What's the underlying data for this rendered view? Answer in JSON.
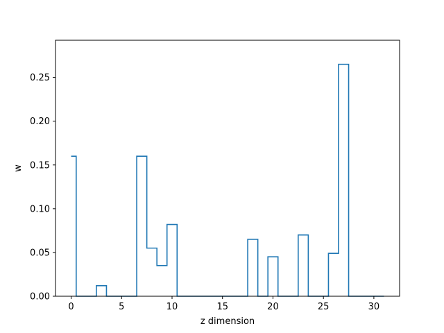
{
  "chart_data": {
    "type": "line",
    "drawstyle": "steps-mid",
    "title": "",
    "xlabel": "z dimension",
    "ylabel": "w",
    "xlim": [
      -1.55,
      32.55
    ],
    "ylim": [
      0.0,
      0.2925
    ],
    "xticks": [
      0,
      5,
      10,
      15,
      20,
      25,
      30
    ],
    "xtick_labels": [
      "0",
      "5",
      "10",
      "15",
      "20",
      "25",
      "30"
    ],
    "yticks": [
      0.0,
      0.05,
      0.1,
      0.15,
      0.2,
      0.25
    ],
    "ytick_labels": [
      "0.00",
      "0.05",
      "0.10",
      "0.15",
      "0.20",
      "0.25"
    ],
    "grid": false,
    "series": [
      {
        "color": "#1f77b4",
        "x": [
          0,
          1,
          2,
          3,
          4,
          5,
          6,
          7,
          8,
          9,
          10,
          11,
          12,
          13,
          14,
          15,
          16,
          17,
          18,
          19,
          20,
          21,
          22,
          23,
          24,
          25,
          26,
          27,
          28,
          29,
          30,
          31
        ],
        "y": [
          0.16,
          0.0,
          0.0,
          0.012,
          0.0,
          0.0,
          0.0,
          0.16,
          0.055,
          0.035,
          0.082,
          0.0,
          0.0,
          0.0,
          0.0,
          0.0,
          0.0,
          0.0,
          0.065,
          0.0,
          0.045,
          0.0,
          0.0,
          0.07,
          0.0,
          0.0,
          0.049,
          0.265,
          0.0,
          0.0,
          0.0,
          0.0
        ]
      }
    ]
  }
}
